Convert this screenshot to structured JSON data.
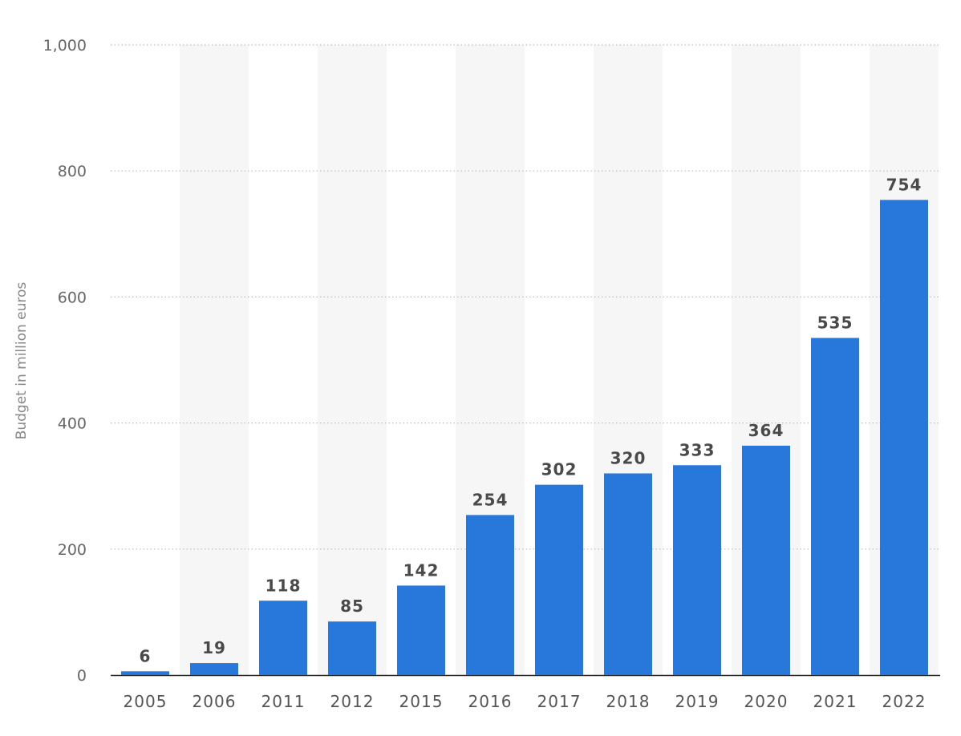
{
  "chart_data": {
    "type": "bar",
    "categories": [
      "2005",
      "2006",
      "2011",
      "2012",
      "2015",
      "2016",
      "2017",
      "2018",
      "2019",
      "2020",
      "2021",
      "2022"
    ],
    "values": [
      6,
      19,
      118,
      85,
      142,
      254,
      302,
      320,
      333,
      364,
      535,
      754
    ],
    "value_labels": [
      "6",
      "19",
      "118",
      "85",
      "142",
      "254",
      "302",
      "320",
      "333",
      "364",
      "535",
      "754"
    ],
    "ylabel": "Budget in million euros",
    "xlabel": "",
    "ylim": [
      0,
      1000
    ],
    "yticks": [
      0,
      200,
      400,
      600,
      800,
      1000
    ],
    "ytick_labels": [
      "0",
      "200",
      "400",
      "600",
      "800",
      "1,000"
    ],
    "grid": true,
    "bar_color": "#2878dc",
    "band_color": "#f6f6f6",
    "gridline_color": "#bbbbbb",
    "baseline_color": "#222222"
  }
}
